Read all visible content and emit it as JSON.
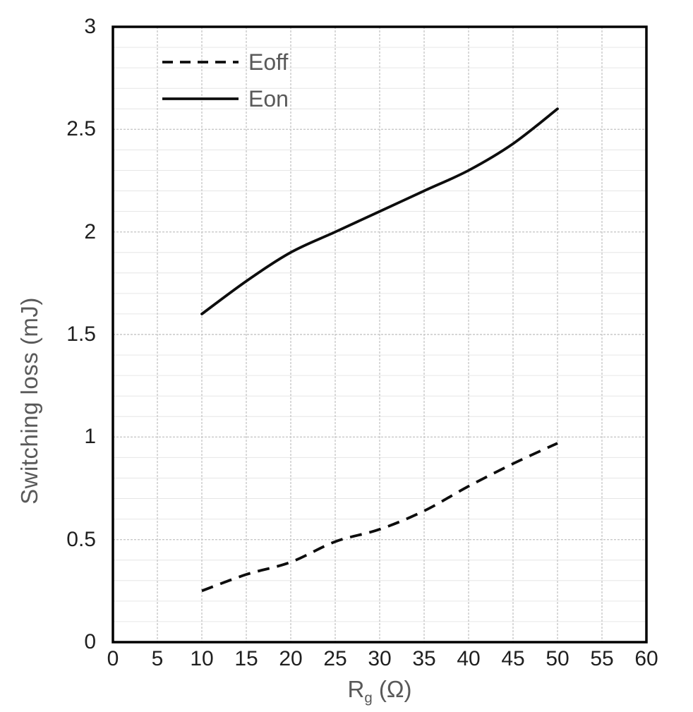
{
  "chart_data": {
    "type": "line",
    "title": "",
    "xlabel": "Rg (Ω)",
    "xlabel_parts": {
      "main": "R",
      "sub": "g",
      "rest": " (Ω)"
    },
    "ylabel": "Switching loss (mJ)",
    "xlim": [
      0,
      60
    ],
    "ylim": [
      0,
      3
    ],
    "x_ticks": [
      0,
      5,
      10,
      15,
      20,
      25,
      30,
      35,
      40,
      45,
      50,
      55,
      60
    ],
    "y_ticks": [
      0,
      0.5,
      1,
      1.5,
      2,
      2.5,
      3
    ],
    "y_minor_step": 0.1,
    "grid": "vertical major every 5; horizontal major every 0.5 plus minor every 0.1",
    "legend_position": "top-left-inside",
    "x": [
      10,
      15,
      20,
      25,
      30,
      35,
      40,
      45,
      50
    ],
    "series": [
      {
        "name": "Eoff",
        "style": "dashed",
        "color": "#0d0d0d",
        "values": [
          0.25,
          0.33,
          0.39,
          0.49,
          0.55,
          0.64,
          0.76,
          0.87,
          0.97
        ]
      },
      {
        "name": "Eon",
        "style": "solid",
        "color": "#0d0d0d",
        "values": [
          1.6,
          1.76,
          1.9,
          2.0,
          2.1,
          2.2,
          2.3,
          2.43,
          2.6
        ]
      }
    ],
    "colors": {
      "axis_text": "#1f1f1f",
      "axis_title_text": "#595959",
      "legend_text": "#595959",
      "line": "#0d0d0d",
      "grid_major": "#c9c9c9",
      "grid_minor": "#e6e6e6",
      "plot_border": "#000000",
      "background": "#ffffff"
    }
  }
}
